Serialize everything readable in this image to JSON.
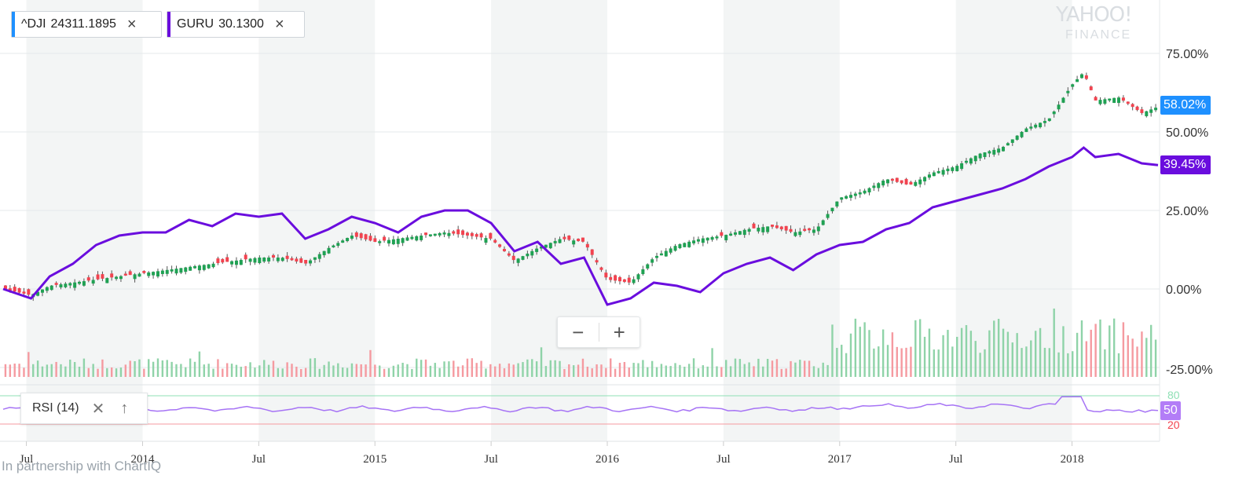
{
  "legend_chips": [
    {
      "symbol": "^DJI",
      "value": "24311.1895",
      "color": "#1e90ff"
    },
    {
      "symbol": "GURU",
      "value": "30.1300",
      "color": "#6a0dde"
    }
  ],
  "watermark": {
    "brand": "YAHOO!",
    "sub": "FINANCE"
  },
  "badges": {
    "dji": "58.02%",
    "guru": "39.45%",
    "rsi": "50"
  },
  "zoom": {
    "minus": "−",
    "plus": "+"
  },
  "rsi_panel": {
    "label": "RSI (14)",
    "close": "✕",
    "up": "↑",
    "upper_level": "80",
    "lower_level": "20"
  },
  "footer": "In partnership with ChartIQ",
  "colors": {
    "up": "#1fa153",
    "down": "#f2434f",
    "guru": "#6a0dde",
    "dji_badge": "#1e90ff",
    "rsi": "#a673f5",
    "band": "#f3f5f5"
  },
  "chart_data": {
    "type": "line",
    "y_axis_labels": [
      "75.00%",
      "50.00%",
      "25.00%",
      "0.00%",
      "-25.00%"
    ],
    "ylim": [
      -25,
      75
    ],
    "x_tick_labels": [
      "Jul",
      "2014",
      "Jul",
      "2015",
      "Jul",
      "2016",
      "Jul",
      "2017",
      "Jul",
      "2018"
    ],
    "x": [
      2013.4,
      2013.52,
      2013.6,
      2013.7,
      2013.8,
      2013.9,
      2014.0,
      2014.1,
      2014.2,
      2014.3,
      2014.4,
      2014.5,
      2014.6,
      2014.7,
      2014.8,
      2014.9,
      2015.0,
      2015.1,
      2015.2,
      2015.3,
      2015.4,
      2015.5,
      2015.6,
      2015.7,
      2015.8,
      2015.9,
      2016.0,
      2016.1,
      2016.2,
      2016.3,
      2016.4,
      2016.5,
      2016.6,
      2016.7,
      2016.8,
      2016.9,
      2017.0,
      2017.1,
      2017.2,
      2017.3,
      2017.4,
      2017.5,
      2017.6,
      2017.7,
      2017.8,
      2017.9,
      2018.0,
      2018.05,
      2018.1,
      2018.2,
      2018.3,
      2018.37
    ],
    "series": [
      {
        "name": "^DJI",
        "style": "candles",
        "values": [
          0,
          -2,
          1,
          2,
          3,
          4,
          5,
          6,
          7,
          8,
          9,
          10,
          10,
          8,
          13,
          17,
          15,
          16,
          17,
          18,
          17,
          16,
          9,
          13,
          16,
          15,
          3,
          2,
          10,
          14,
          16,
          17,
          19,
          20,
          18,
          19,
          29,
          31,
          35,
          33,
          37,
          39,
          43,
          45,
          51,
          54,
          65,
          69,
          60,
          61,
          56,
          58
        ]
      },
      {
        "name": "GURU",
        "style": "line",
        "values": [
          0,
          -3,
          4,
          8,
          14,
          17,
          18,
          18,
          22,
          20,
          24,
          23,
          24,
          16,
          19,
          23,
          21,
          18,
          23,
          25,
          25,
          21,
          12,
          15,
          8,
          10,
          -5,
          -3,
          2,
          1,
          -1,
          5,
          8,
          10,
          6,
          11,
          14,
          15,
          19,
          21,
          26,
          28,
          30,
          32,
          35,
          39,
          42,
          45,
          42,
          43,
          40,
          39.45
        ]
      }
    ],
    "rsi": {
      "label": "RSI (14)",
      "upper": 80,
      "lower": 20,
      "current": 50
    }
  }
}
